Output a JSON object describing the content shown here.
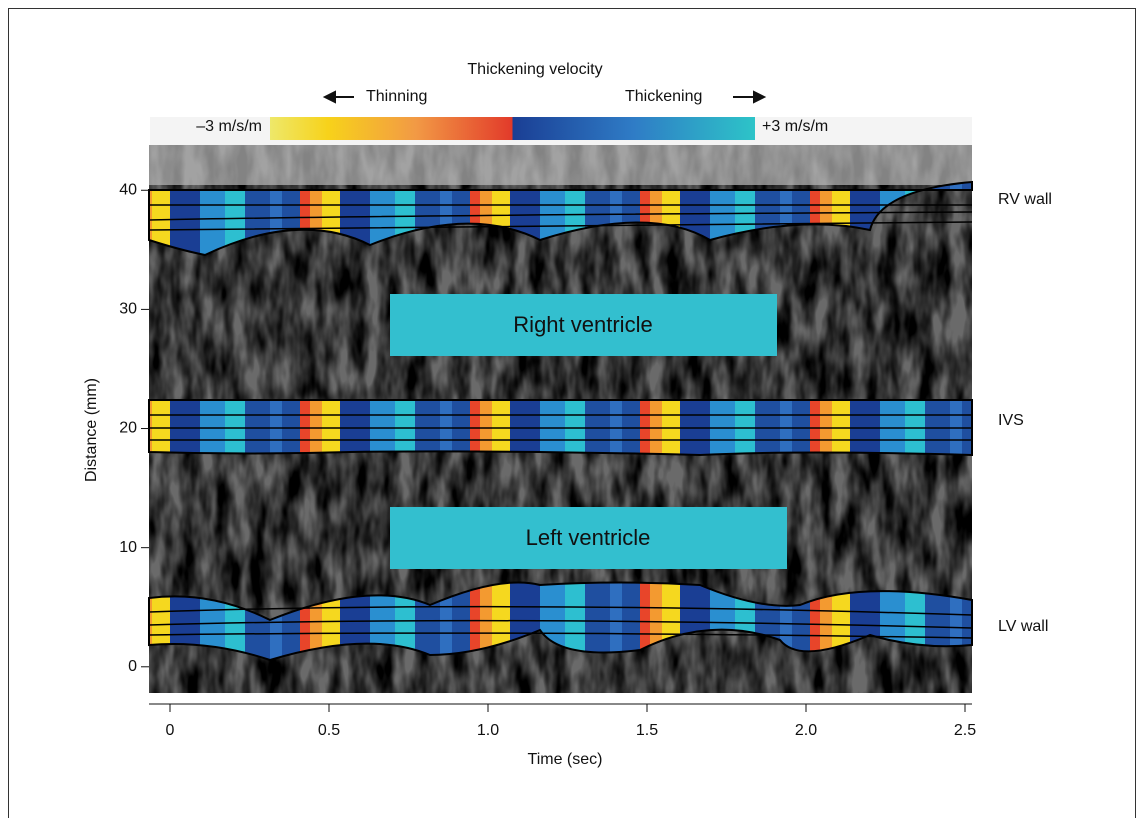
{
  "colorbar": {
    "title": "Thickening velocity",
    "left_direction": "Thinning",
    "right_direction": "Thickening",
    "min_label": "–3 m/s/m",
    "max_label": "+3 m/s/m"
  },
  "x_axis": {
    "label": "Time (sec)",
    "lim": [
      -0.066,
      2.522
    ],
    "ticks": [
      {
        "value": 0,
        "label": "0"
      },
      {
        "value": 0.5,
        "label": "0.5"
      },
      {
        "value": 1,
        "label": "1.0"
      },
      {
        "value": 1.5,
        "label": "1.5"
      },
      {
        "value": 2,
        "label": "2.0"
      },
      {
        "value": 2.5,
        "label": "2.5"
      }
    ]
  },
  "y_axis": {
    "label": "Distance (mm)",
    "lim": [
      -2.2,
      43.8
    ],
    "ticks": [
      0,
      10,
      20,
      30,
      40
    ]
  },
  "regions": [
    "Right ventricle",
    "Left ventricle"
  ],
  "walls": [
    "RV wall",
    "IVS",
    "LV wall"
  ]
}
